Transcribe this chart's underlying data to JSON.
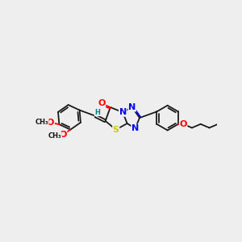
{
  "bg_color": "#eeeeee",
  "bond_color": "#1a1a1a",
  "atom_colors": {
    "O": "#ff0000",
    "N": "#0000ff",
    "S": "#cccc00",
    "H": "#008080",
    "C": "#1a1a1a"
  },
  "font_size_atom": 8
}
